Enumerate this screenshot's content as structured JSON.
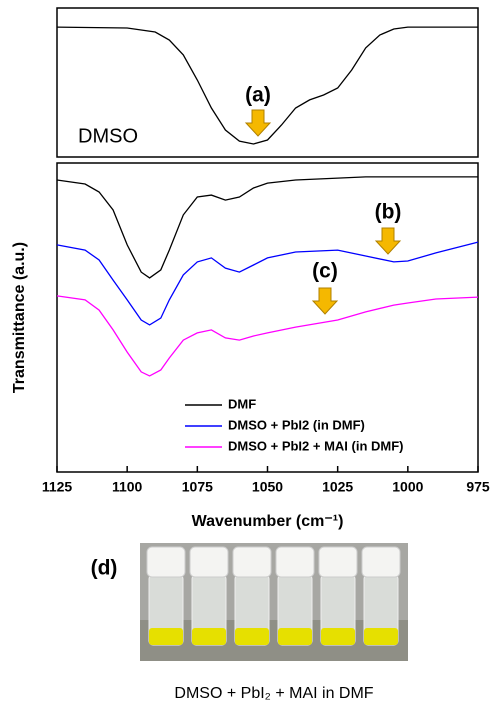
{
  "chart_data": [
    {
      "type": "line",
      "x": [
        1125,
        1100,
        1090,
        1085,
        1080,
        1075,
        1070,
        1065,
        1060,
        1055,
        1050,
        1045,
        1040,
        1035,
        1030,
        1025,
        1020,
        1015,
        1010,
        1005,
        1000,
        975
      ],
      "xlim": [
        1125,
        975
      ],
      "ylim": [
        0,
        10
      ],
      "series": [
        {
          "name": "DMSO",
          "color": "#000000",
          "values": [
            8.72,
            8.66,
            8.39,
            7.85,
            6.85,
            5.17,
            3.29,
            1.81,
            1.07,
            0.87,
            1.14,
            2.15,
            3.29,
            3.83,
            4.16,
            4.63,
            5.84,
            7.32,
            8.19,
            8.59,
            8.72,
            8.72
          ]
        }
      ],
      "annotations": [
        "(a)"
      ]
    },
    {
      "type": "line",
      "x": [
        1125,
        1115,
        1110,
        1105,
        1100,
        1095,
        1092,
        1088,
        1085,
        1080,
        1075,
        1070,
        1065,
        1060,
        1055,
        1050,
        1040,
        1025,
        1015,
        1005,
        1000,
        990,
        975
      ],
      "xlim": [
        1125,
        975
      ],
      "ylim": [
        0,
        10
      ],
      "xticks": [
        1125,
        1100,
        1075,
        1050,
        1025,
        1000,
        975
      ],
      "xlabel": "Wavenumber (cm⁻¹)",
      "ylabel": "Transmittance (a.u.)",
      "legend": "lower right",
      "series": [
        {
          "name": "DMF",
          "color": "#000000",
          "values": [
            9.45,
            9.32,
            9.06,
            8.48,
            7.35,
            6.47,
            6.28,
            6.54,
            7.18,
            8.32,
            8.9,
            8.96,
            8.8,
            8.9,
            9.19,
            9.35,
            9.45,
            9.51,
            9.55,
            9.55,
            9.55,
            9.55,
            9.55
          ]
        },
        {
          "name": "DMSO + PbI2 (in DMF)",
          "color": "#0000ff",
          "values": [
            7.35,
            7.18,
            6.86,
            6.21,
            5.57,
            4.92,
            4.76,
            4.98,
            5.57,
            6.38,
            6.8,
            6.93,
            6.6,
            6.47,
            6.7,
            6.93,
            7.12,
            7.18,
            6.99,
            6.8,
            6.83,
            7.09,
            7.44
          ]
        },
        {
          "name": "DMSO + PbI2 + MAI (in DMF)",
          "color": "#ff00ff",
          "values": [
            5.7,
            5.57,
            5.24,
            4.6,
            3.88,
            3.24,
            3.11,
            3.3,
            3.69,
            4.27,
            4.5,
            4.6,
            4.34,
            4.27,
            4.4,
            4.5,
            4.69,
            4.92,
            5.18,
            5.4,
            5.47,
            5.6,
            5.66
          ]
        }
      ],
      "annotations": [
        "(b)",
        "(c)"
      ]
    }
  ],
  "photo": {
    "label": "(d)",
    "caption": "DMSO + PbI₂ + MAI in DMF"
  }
}
